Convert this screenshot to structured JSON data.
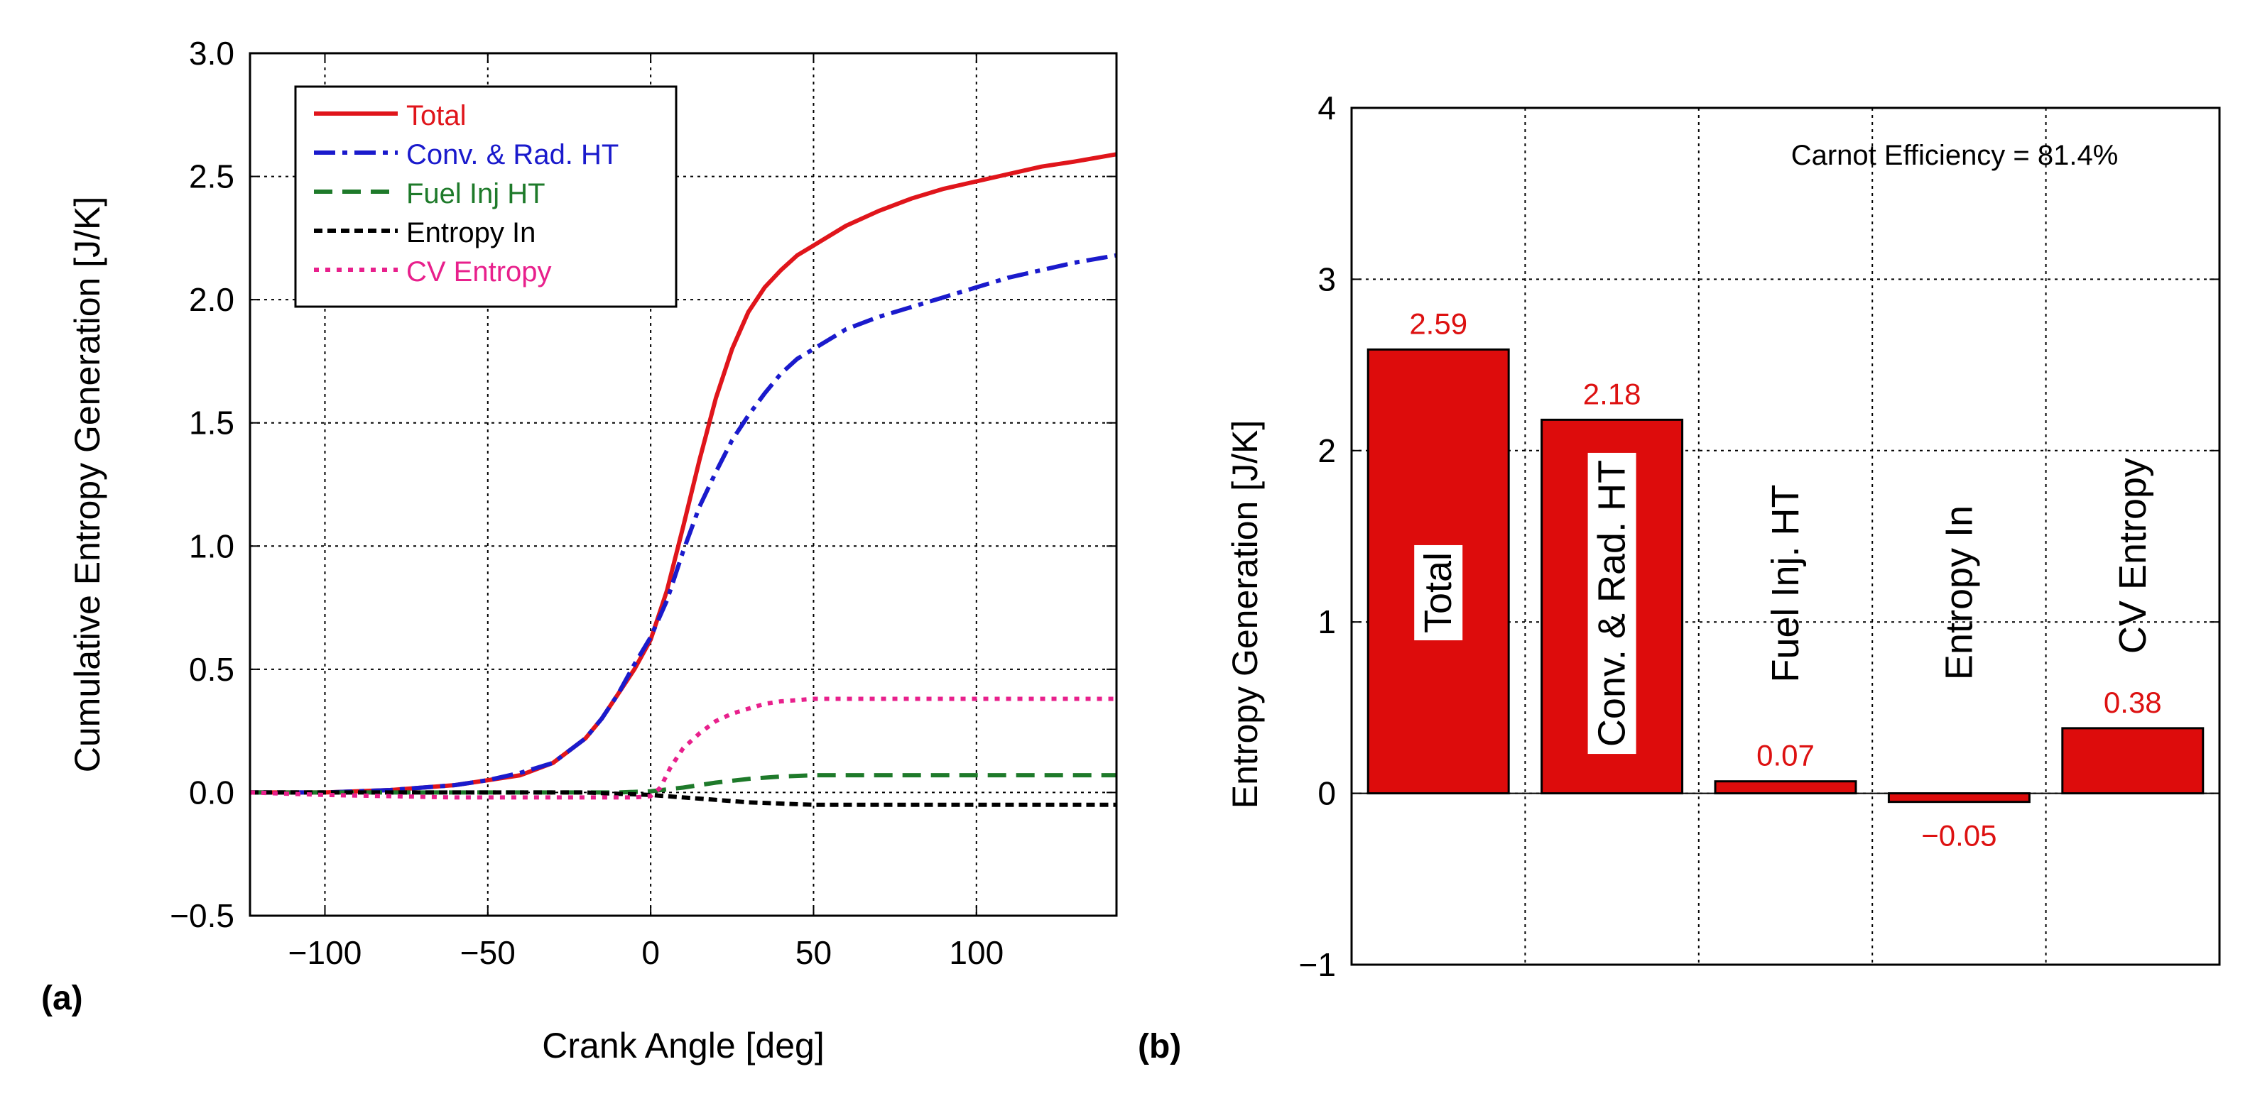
{
  "panel_labels": {
    "a": "(a)",
    "b": "(b)"
  },
  "chart_data": [
    {
      "type": "line",
      "xlabel": "Crank Angle [deg]",
      "ylabel": "Cumulative Entropy Generation [J/K]",
      "xlim": [
        -123,
        143
      ],
      "ylim": [
        -0.5,
        3.0
      ],
      "xticks": [
        -100,
        -50,
        0,
        50,
        100
      ],
      "xtick_labels": [
        "−100",
        "−50",
        "0",
        "50",
        "100"
      ],
      "yticks": [
        -0.5,
        0.0,
        0.5,
        1.0,
        1.5,
        2.0,
        2.5,
        3.0
      ],
      "ytick_labels": [
        "−0.5",
        "0.0",
        "0.5",
        "1.0",
        "1.5",
        "2.0",
        "2.5",
        "3.0"
      ],
      "grid": true,
      "legend_position": "top-left",
      "series": [
        {
          "name": "Total",
          "color": "#e0151b",
          "dash": "solid",
          "x": [
            -123,
            -100,
            -80,
            -70,
            -60,
            -50,
            -40,
            -30,
            -20,
            -15,
            -10,
            -5,
            0,
            5,
            10,
            15,
            20,
            25,
            30,
            35,
            40,
            45,
            50,
            60,
            70,
            80,
            90,
            100,
            110,
            120,
            130,
            143
          ],
          "y": [
            0,
            0,
            0.01,
            0.02,
            0.03,
            0.05,
            0.07,
            0.12,
            0.22,
            0.3,
            0.4,
            0.5,
            0.62,
            0.82,
            1.08,
            1.35,
            1.6,
            1.8,
            1.95,
            2.05,
            2.12,
            2.18,
            2.22,
            2.3,
            2.36,
            2.41,
            2.45,
            2.48,
            2.51,
            2.54,
            2.56,
            2.59
          ]
        },
        {
          "name": "Conv. & Rad. HT",
          "color": "#1a1acc",
          "dash": "dashdot",
          "x": [
            -123,
            -100,
            -80,
            -70,
            -60,
            -50,
            -40,
            -30,
            -20,
            -15,
            -10,
            -5,
            0,
            5,
            10,
            15,
            20,
            25,
            30,
            35,
            40,
            45,
            50,
            60,
            70,
            80,
            90,
            100,
            110,
            120,
            130,
            143
          ],
          "y": [
            0,
            0,
            0.01,
            0.02,
            0.03,
            0.05,
            0.08,
            0.12,
            0.22,
            0.3,
            0.4,
            0.52,
            0.63,
            0.78,
            0.98,
            1.16,
            1.3,
            1.43,
            1.53,
            1.62,
            1.7,
            1.76,
            1.8,
            1.88,
            1.93,
            1.97,
            2.01,
            2.05,
            2.09,
            2.12,
            2.15,
            2.18
          ]
        },
        {
          "name": "Fuel Inj HT",
          "color": "#1e7a2a",
          "dash": "dash",
          "x": [
            -123,
            -60,
            -40,
            -20,
            -10,
            0,
            10,
            20,
            30,
            40,
            50,
            60,
            80,
            100,
            143
          ],
          "y": [
            0,
            0,
            0,
            0,
            0,
            0.005,
            0.02,
            0.04,
            0.055,
            0.065,
            0.07,
            0.07,
            0.07,
            0.07,
            0.07
          ]
        },
        {
          "name": "Entropy In",
          "color": "#000000",
          "dash": "shortdash",
          "x": [
            -123,
            -60,
            -40,
            -20,
            -10,
            0,
            10,
            20,
            30,
            40,
            50,
            60,
            80,
            100,
            143
          ],
          "y": [
            0,
            0,
            0,
            0,
            -0.005,
            -0.01,
            -0.02,
            -0.03,
            -0.04,
            -0.045,
            -0.05,
            -0.05,
            -0.05,
            -0.05,
            -0.05
          ]
        },
        {
          "name": "CV Entropy",
          "color": "#e8208c",
          "dash": "dot",
          "x": [
            -123,
            -100,
            -80,
            -60,
            -40,
            -20,
            -10,
            -5,
            0,
            3,
            6,
            10,
            15,
            20,
            25,
            30,
            35,
            40,
            45,
            50,
            60,
            80,
            100,
            120,
            143
          ],
          "y": [
            0,
            -0.01,
            -0.015,
            -0.02,
            -0.02,
            -0.02,
            -0.02,
            -0.02,
            -0.015,
            0.02,
            0.1,
            0.18,
            0.24,
            0.29,
            0.32,
            0.34,
            0.36,
            0.37,
            0.375,
            0.38,
            0.38,
            0.38,
            0.38,
            0.38,
            0.38
          ]
        }
      ]
    },
    {
      "type": "bar",
      "ylabel": "Entropy Generation [J/K]",
      "ylim": [
        -1,
        4
      ],
      "yticks": [
        -1,
        0,
        1,
        2,
        3,
        4
      ],
      "ytick_labels": [
        "−1",
        "0",
        "1",
        "2",
        "3",
        "4"
      ],
      "grid": true,
      "bar_color": "#dd0c0c",
      "value_label_color": "#dd1111",
      "annotation": "Carnot Efficiency = 81.4%",
      "categories": [
        "Total",
        "Conv. & Rad. HT",
        "Fuel Inj. HT",
        "Entropy In",
        "CV Entropy"
      ],
      "values": [
        2.59,
        2.18,
        0.07,
        -0.05,
        0.38
      ],
      "value_labels": [
        "2.59",
        "2.18",
        "0.07",
        "−0.05",
        "0.38"
      ],
      "label_style": [
        "boxed",
        "boxed",
        "plain",
        "plain",
        "plain"
      ]
    }
  ]
}
